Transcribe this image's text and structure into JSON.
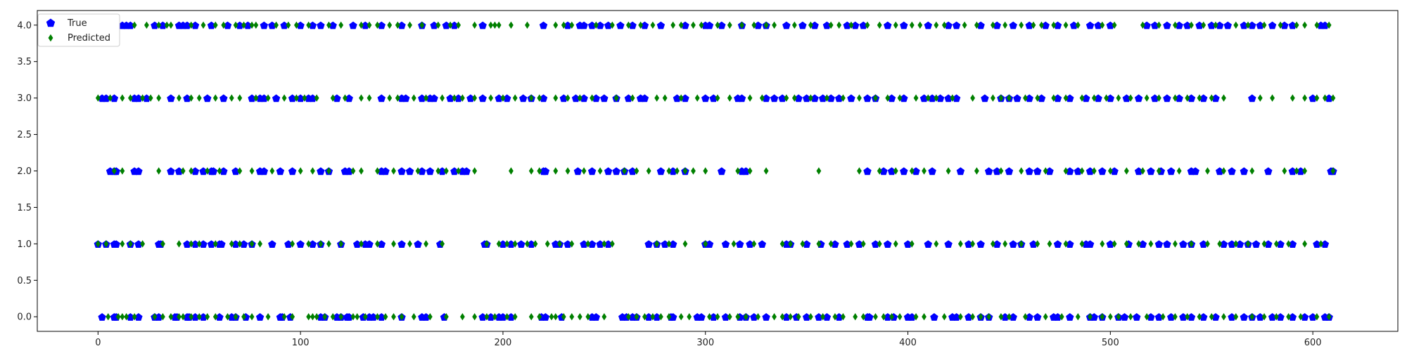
{
  "chart_data": {
    "type": "scatter",
    "title": "",
    "xlabel": "",
    "ylabel": "",
    "xlim": [
      -30,
      642
    ],
    "ylim": [
      -0.2,
      4.2
    ],
    "xticks": [
      0,
      100,
      200,
      300,
      400,
      500,
      600
    ],
    "xtick_labels": [
      "0",
      "100",
      "200",
      "300",
      "400",
      "500",
      "600"
    ],
    "yticks": [
      0.0,
      0.5,
      1.0,
      1.5,
      2.0,
      2.5,
      3.0,
      3.5,
      4.0
    ],
    "ytick_labels": [
      "0.0",
      "0.5",
      "1.0",
      "1.5",
      "2.0",
      "2.5",
      "3.0",
      "3.5",
      "4.0"
    ],
    "grid": false,
    "legend_position": "top-left",
    "series": [
      {
        "name": "True",
        "marker": "pentagon",
        "color": "#0000ff",
        "points": {
          "0": [
            2,
            8,
            9,
            16,
            20,
            28,
            30,
            38,
            39,
            44,
            45,
            48,
            52,
            60,
            66,
            68,
            73,
            80,
            90,
            91,
            95,
            110,
            112,
            118,
            120,
            123,
            124,
            131,
            134,
            136,
            140,
            150,
            160,
            162,
            171,
            190,
            194,
            198,
            200,
            204,
            219,
            221,
            229,
            244,
            246,
            259,
            261,
            264,
            266,
            272,
            276,
            283,
            284,
            296,
            298,
            304,
            310,
            317,
            320,
            324,
            330,
            340,
            345,
            350,
            356,
            360,
            366,
            380,
            381,
            390,
            393,
            400,
            402,
            413,
            422,
            424,
            430,
            436,
            440,
            448,
            452,
            460,
            464,
            472,
            474,
            480,
            490,
            492,
            496,
            504,
            507,
            513,
            520,
            524,
            530,
            536,
            540,
            546,
            552,
            560,
            566,
            570,
            574,
            580,
            584,
            590,
            596,
            600,
            606,
            608
          ],
          "1": [
            0,
            4,
            8,
            9,
            16,
            20,
            30,
            31,
            44,
            48,
            52,
            56,
            60,
            61,
            68,
            72,
            76,
            86,
            94,
            100,
            106,
            110,
            120,
            128,
            132,
            134,
            140,
            150,
            158,
            169,
            191,
            192,
            200,
            204,
            209,
            214,
            226,
            228,
            232,
            240,
            244,
            248,
            252,
            272,
            276,
            280,
            284,
            300,
            302,
            310,
            317,
            322,
            328,
            340,
            342,
            350,
            357,
            364,
            370,
            376,
            384,
            390,
            400,
            410,
            420,
            430,
            436,
            444,
            452,
            456,
            462,
            474,
            480,
            488,
            490,
            500,
            509,
            516,
            524,
            528,
            536,
            540,
            546,
            556,
            560,
            564,
            568,
            572,
            578,
            584,
            590,
            602,
            606
          ],
          "2": [
            6,
            8,
            9,
            18,
            20,
            36,
            40,
            48,
            52,
            56,
            57,
            62,
            68,
            80,
            82,
            90,
            96,
            110,
            114,
            122,
            124,
            140,
            142,
            150,
            154,
            160,
            164,
            170,
            176,
            180,
            182,
            220,
            221,
            237,
            244,
            252,
            256,
            260,
            264,
            278,
            284,
            290,
            308,
            318,
            320,
            380,
            388,
            392,
            398,
            404,
            412,
            426,
            440,
            444,
            450,
            460,
            464,
            470,
            480,
            484,
            490,
            496,
            502,
            514,
            520,
            525,
            530,
            540,
            542,
            554,
            560,
            566,
            578,
            590,
            594,
            609,
            610
          ],
          "3": [
            2,
            4,
            8,
            18,
            20,
            24,
            36,
            44,
            54,
            62,
            76,
            80,
            82,
            88,
            96,
            100,
            104,
            106,
            118,
            124,
            140,
            150,
            152,
            160,
            164,
            166,
            174,
            178,
            184,
            190,
            198,
            202,
            210,
            214,
            220,
            230,
            236,
            240,
            246,
            250,
            256,
            262,
            268,
            270,
            286,
            290,
            300,
            304,
            316,
            318,
            330,
            334,
            338,
            346,
            350,
            354,
            358,
            362,
            366,
            372,
            380,
            384,
            392,
            398,
            408,
            412,
            416,
            420,
            424,
            438,
            446,
            450,
            454,
            460,
            466,
            474,
            480,
            488,
            494,
            500,
            508,
            514,
            522,
            528,
            534,
            540,
            546,
            552,
            570,
            600,
            608
          ],
          "4": [
            6,
            12,
            14,
            16,
            28,
            32,
            40,
            42,
            44,
            48,
            56,
            64,
            70,
            74,
            82,
            86,
            92,
            100,
            106,
            110,
            116,
            126,
            132,
            140,
            150,
            160,
            166,
            172,
            176,
            190,
            220,
            232,
            238,
            240,
            244,
            248,
            252,
            258,
            264,
            270,
            278,
            290,
            300,
            302,
            308,
            318,
            326,
            330,
            340,
            348,
            354,
            360,
            370,
            374,
            378,
            390,
            398,
            410,
            420,
            424,
            436,
            444,
            452,
            460,
            468,
            474,
            482,
            490,
            494,
            500,
            518,
            522,
            528,
            534,
            538,
            544,
            550,
            554,
            558,
            566,
            570,
            574,
            580,
            586,
            590,
            604,
            606
          ]
        }
      },
      {
        "name": "Predicted",
        "marker": "diamond",
        "color": "#008000",
        "points": {
          "0": [
            5,
            10,
            12,
            14,
            18,
            28,
            32,
            36,
            40,
            42,
            46,
            50,
            54,
            58,
            64,
            68,
            72,
            76,
            84,
            92,
            96,
            104,
            106,
            108,
            112,
            116,
            120,
            126,
            128,
            132,
            138,
            142,
            146,
            150,
            156,
            164,
            172,
            180,
            186,
            192,
            196,
            202,
            206,
            214,
            218,
            224,
            226,
            230,
            234,
            238,
            242,
            250,
            262,
            266,
            270,
            274,
            278,
            282,
            288,
            292,
            302,
            306,
            312,
            316,
            320,
            326,
            334,
            338,
            342,
            346,
            352,
            358,
            364,
            368,
            374,
            378,
            384,
            388,
            392,
            396,
            404,
            408,
            418,
            426,
            432,
            436,
            440,
            446,
            450,
            458,
            468,
            476,
            484,
            490,
            496,
            500,
            504,
            510,
            518,
            526,
            532,
            538,
            544,
            550,
            556,
            562,
            570,
            576,
            582,
            588,
            594,
            602,
            608
          ],
          "1": [
            0,
            4,
            12,
            16,
            22,
            32,
            40,
            46,
            50,
            58,
            66,
            70,
            76,
            80,
            96,
            104,
            110,
            114,
            120,
            130,
            138,
            146,
            154,
            162,
            170,
            192,
            198,
            202,
            206,
            212,
            216,
            222,
            228,
            234,
            242,
            250,
            254,
            276,
            282,
            290,
            300,
            314,
            324,
            338,
            342,
            348,
            356,
            362,
            372,
            378,
            386,
            394,
            402,
            414,
            426,
            432,
            442,
            448,
            456,
            464,
            470,
            478,
            486,
            496,
            502,
            508,
            514,
            520,
            532,
            540,
            548,
            554,
            562,
            568,
            576,
            582,
            588,
            596,
            604
          ],
          "2": [
            8,
            12,
            30,
            42,
            46,
            54,
            60,
            70,
            76,
            86,
            100,
            106,
            114,
            126,
            130,
            138,
            146,
            158,
            168,
            172,
            178,
            186,
            204,
            214,
            218,
            226,
            232,
            240,
            248,
            260,
            266,
            272,
            282,
            286,
            290,
            294,
            300,
            316,
            322,
            330,
            356,
            376,
            386,
            394,
            402,
            408,
            420,
            434,
            446,
            456,
            468,
            478,
            486,
            492,
            500,
            508,
            516,
            524,
            534,
            548,
            556,
            570,
            586,
            592,
            596,
            610
          ],
          "3": [
            0,
            6,
            12,
            16,
            22,
            26,
            30,
            40,
            46,
            50,
            58,
            66,
            70,
            78,
            84,
            92,
            98,
            102,
            108,
            116,
            122,
            130,
            134,
            144,
            148,
            156,
            162,
            170,
            176,
            180,
            186,
            194,
            200,
            206,
            214,
            218,
            226,
            232,
            238,
            244,
            256,
            264,
            276,
            280,
            288,
            296,
            306,
            312,
            322,
            328,
            340,
            344,
            352,
            360,
            368,
            376,
            384,
            390,
            396,
            404,
            410,
            414,
            422,
            432,
            442,
            446,
            450,
            458,
            464,
            472,
            478,
            486,
            492,
            498,
            504,
            510,
            518,
            524,
            532,
            538,
            544,
            550,
            556,
            574,
            580,
            590,
            596,
            602,
            606,
            610
          ],
          "4": [
            0,
            8,
            18,
            24,
            30,
            34,
            36,
            46,
            52,
            58,
            62,
            68,
            72,
            76,
            78,
            88,
            94,
            98,
            104,
            114,
            120,
            130,
            134,
            138,
            144,
            148,
            154,
            160,
            168,
            174,
            178,
            186,
            194,
            196,
            198,
            204,
            212,
            226,
            230,
            234,
            246,
            254,
            262,
            268,
            274,
            284,
            288,
            294,
            298,
            306,
            312,
            318,
            324,
            330,
            334,
            344,
            352,
            362,
            366,
            372,
            380,
            386,
            394,
            402,
            406,
            414,
            418,
            428,
            434,
            442,
            448,
            456,
            462,
            466,
            472,
            478,
            484,
            496,
            502,
            516,
            524,
            532,
            540,
            546,
            552,
            562,
            568,
            576,
            584,
            592,
            596,
            602,
            608
          ]
        }
      }
    ]
  }
}
